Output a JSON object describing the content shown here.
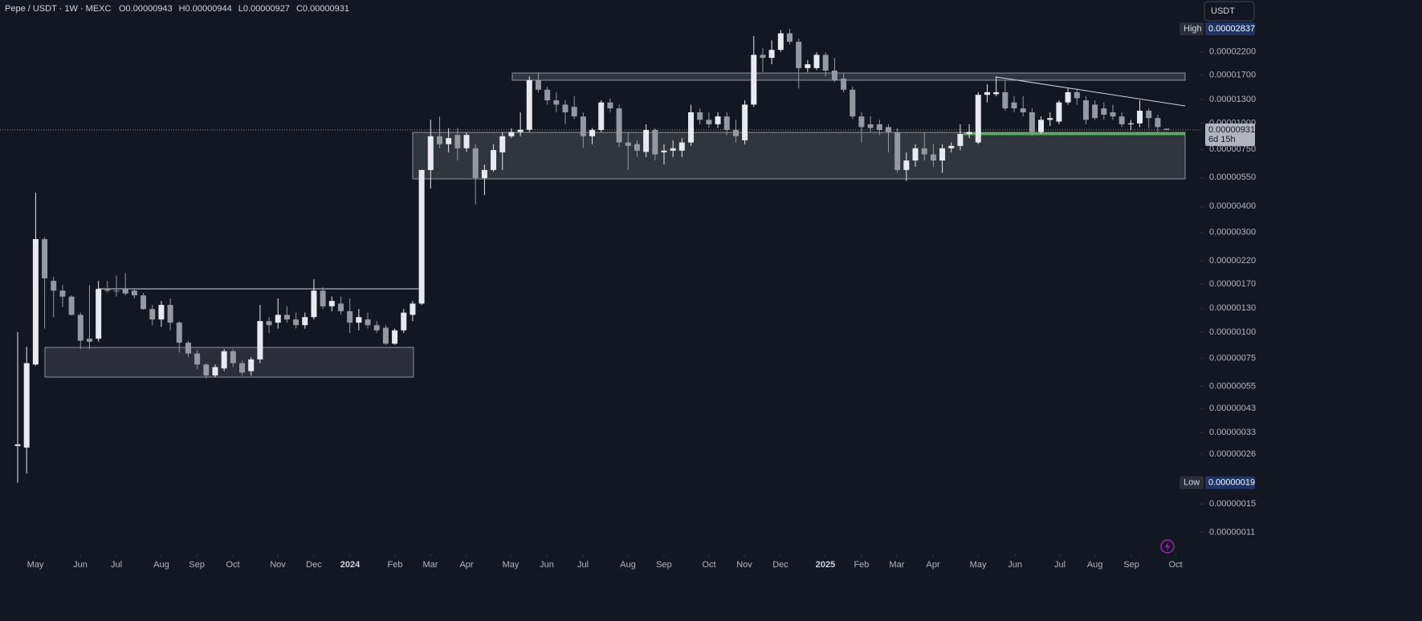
{
  "chart_data": {
    "type": "candlestick",
    "title": "Pepe / USDT · 1W · MEXC",
    "legend_values": [
      "O0.00000943",
      "H0.00000944",
      "L0.00000927",
      "C0.00000931"
    ],
    "currency": "USDT",
    "high_label": {
      "name": "High",
      "value_label": "0.00002837"
    },
    "low_label": {
      "name": "Low",
      "value_label": "0.00000019"
    },
    "last_label": {
      "value_label": "0.00000931",
      "countdown": "6d 15h"
    },
    "log_scale": true,
    "grid": false,
    "up_color": "#e8eaf0",
    "down_color": "#9598a1",
    "ylim": [
      8.69e-08,
      3.9e-05
    ],
    "yticks": [
      {
        "value": 2.2e-05,
        "label": "0.00002200"
      },
      {
        "value": 1.7e-05,
        "label": "0.00001700"
      },
      {
        "value": 1.3e-05,
        "label": "0.00001300"
      },
      {
        "value": 1e-05,
        "label": "0.00001000"
      },
      {
        "value": 7.5e-06,
        "label": "0.00000750"
      },
      {
        "value": 5.5e-06,
        "label": "0.00000550"
      },
      {
        "value": 4e-06,
        "label": "0.00000400"
      },
      {
        "value": 3e-06,
        "label": "0.00000300"
      },
      {
        "value": 2.2e-06,
        "label": "0.00000220"
      },
      {
        "value": 1.7e-06,
        "label": "0.00000170"
      },
      {
        "value": 1.3e-06,
        "label": "0.00000130"
      },
      {
        "value": 1e-06,
        "label": "0.00000100"
      },
      {
        "value": 7.5e-07,
        "label": "0.00000075"
      },
      {
        "value": 5.5e-07,
        "label": "0.00000055"
      },
      {
        "value": 4.3e-07,
        "label": "0.00000043"
      },
      {
        "value": 3.3e-07,
        "label": "0.00000033"
      },
      {
        "value": 2.6e-07,
        "label": "0.00000026"
      },
      {
        "value": 1.5e-07,
        "label": "0.00000015"
      },
      {
        "value": 1.1e-07,
        "label": "0.00000011"
      }
    ],
    "xlim": [
      -1.97,
      131.75
    ],
    "xticks": [
      {
        "value": 1.97,
        "label": "May"
      },
      {
        "value": 6.98,
        "label": "Jun"
      },
      {
        "value": 11.0,
        "label": "Jul"
      },
      {
        "value": 16.0,
        "label": "Aug"
      },
      {
        "value": 19.95,
        "label": "Sep"
      },
      {
        "value": 23.97,
        "label": "Oct"
      },
      {
        "value": 28.98,
        "label": "Nov"
      },
      {
        "value": 33.0,
        "label": "Dec"
      },
      {
        "value": 37.03,
        "label": "2024"
      },
      {
        "value": 42.04,
        "label": "Feb"
      },
      {
        "value": 45.97,
        "label": "Mar"
      },
      {
        "value": 50.0,
        "label": "Apr"
      },
      {
        "value": 54.92,
        "label": "May"
      },
      {
        "value": 58.94,
        "label": "Jun"
      },
      {
        "value": 62.97,
        "label": "Jul"
      },
      {
        "value": 67.98,
        "label": "Aug"
      },
      {
        "value": 72.0,
        "label": "Sep"
      },
      {
        "value": 77.01,
        "label": "Oct"
      },
      {
        "value": 80.95,
        "label": "Nov"
      },
      {
        "value": 84.97,
        "label": "Dec"
      },
      {
        "value": 89.98,
        "label": "2025"
      },
      {
        "value": 94.0,
        "label": "Feb"
      },
      {
        "value": 97.94,
        "label": "Mar"
      },
      {
        "value": 101.97,
        "label": "Apr"
      },
      {
        "value": 106.98,
        "label": "May"
      },
      {
        "value": 111.1,
        "label": "Jun"
      },
      {
        "value": 116.1,
        "label": "Jul"
      },
      {
        "value": 120.0,
        "label": "Aug"
      },
      {
        "value": 124.06,
        "label": "Sep"
      },
      {
        "value": 128.98,
        "label": "Oct"
      }
    ],
    "open": [
      2.85e-07,
      2.8e-07,
      7e-07,
      2.79e-06,
      1.76e-06,
      1.58e-06,
      1.48e-06,
      1.21e-06,
      9.3e-07,
      9.3e-07,
      1.6e-06,
      1.58e-06,
      1.61e-06,
      1.58e-06,
      1.5e-06,
      1.29e-06,
      1.15e-06,
      1.35e-06,
      1.11e-06,
      8.9e-07,
      7.9e-07,
      7e-07,
      6.2e-07,
      6.7e-07,
      8.1e-07,
      7.1e-07,
      6.5e-07,
      7.4e-07,
      1.13e-06,
      1.11e-06,
      1.21e-06,
      1.15e-06,
      1.08e-06,
      1.18e-06,
      1.58e-06,
      1.33e-06,
      1.37e-06,
      1.26e-06,
      1.11e-06,
      1.15e-06,
      1.08e-06,
      1.05e-06,
      8.8e-07,
      1.02e-06,
      1.21e-06,
      1.37e-06,
      5.98e-06,
      8.68e-06,
      7.95e-06,
      8.8e-06,
      7.6e-06,
      7.6e-06,
      5.47e-06,
      5.98e-06,
      7.27e-06,
      8.68e-06,
      9.1e-06,
      9.32e-06,
      1.61e-05,
      1.45e-05,
      1.29e-05,
      1.23e-05,
      1.2e-05,
      1.08e-05,
      8.68e-06,
      9.3e-06,
      1.26e-05,
      1.18e-05,
      8.1e-06,
      7.95e-06,
      7.3e-06,
      9.3e-06,
      7.27e-06,
      7.4e-06,
      7.4e-06,
      8.1e-06,
      1.13e-05,
      1.04e-05,
      9.9e-06,
      1.08e-05,
      9.3e-06,
      8.3e-06,
      1.23e-05,
      2.13e-05,
      2.06e-05,
      2.25e-05,
      2.7e-05,
      2.46e-05,
      1.84e-05,
      1.84e-05,
      2.13e-05,
      1.79e-05,
      1.64e-05,
      1.45e-05,
      1.08e-05,
      9.9e-06,
      9.9e-06,
      9.6e-06,
      9.1e-06,
      5.98e-06,
      6.64e-06,
      7.6e-06,
      7.1e-06,
      6.64e-06,
      7.6e-06,
      7.8e-06,
      8.9e-06,
      8.1e-06,
      1.37e-05,
      1.38e-05,
      1.41e-05,
      1.26e-05,
      1.18e-05,
      1.13e-05,
      9.1e-06,
      1.04e-05,
      1.02e-05,
      1.26e-05,
      1.41e-05,
      1.29e-05,
      1.23e-05,
      1.18e-05,
      1.13e-05,
      1.08e-05,
      9.9e-06,
      1e-05,
      1.15e-05,
      1.06e-05,
      9.43e-06
    ],
    "high": [
      1e-06,
      8.5e-07,
      4.66e-06,
      2.85e-06,
      1.84e-06,
      1.68e-06,
      1.5e-06,
      1.24e-06,
      1.68e-06,
      1.76e-06,
      1.76e-06,
      1.87e-06,
      1.92e-06,
      1.61e-06,
      1.54e-06,
      1.35e-06,
      1.41e-06,
      1.45e-06,
      1.13e-06,
      9.1e-07,
      8.2e-07,
      7.1e-07,
      7e-07,
      8.3e-07,
      8.3e-07,
      7.3e-07,
      7.6e-07,
      1.35e-06,
      1.18e-06,
      1.45e-06,
      1.33e-06,
      1.24e-06,
      1.24e-06,
      1.79e-06,
      1.64e-06,
      1.48e-06,
      1.48e-06,
      1.45e-06,
      1.29e-06,
      1.24e-06,
      1.13e-06,
      1.08e-06,
      1.04e-06,
      1.29e-06,
      1.41e-06,
      6e-06,
      1.04e-05,
      1.08e-05,
      9.49e-06,
      9.5e-06,
      9e-06,
      7.95e-06,
      6.35e-06,
      7.95e-06,
      9.1e-06,
      9.49e-06,
      1.13e-05,
      1.68e-05,
      1.76e-05,
      1.5e-05,
      1.41e-05,
      1.29e-05,
      1.35e-05,
      1.13e-05,
      9.5e-06,
      1.29e-05,
      1.32e-05,
      1.23e-05,
      9.1e-06,
      8.3e-06,
      9.9e-06,
      9.5e-06,
      7.95e-06,
      8.3e-06,
      8.5e-06,
      1.23e-05,
      1.18e-05,
      1.13e-05,
      1.13e-05,
      1.13e-05,
      1.04e-05,
      1.29e-05,
      2.62e-05,
      2.29e-05,
      2.5e-05,
      2.8e-05,
      2.837e-05,
      2.55e-05,
      2.01e-05,
      2.19e-05,
      2.19e-05,
      2.06e-05,
      1.73e-05,
      1.5e-05,
      1.13e-05,
      1.08e-05,
      1.04e-05,
      9.9e-06,
      9.49e-06,
      7.27e-06,
      7.95e-06,
      9.1e-06,
      7.95e-06,
      7.95e-06,
      8.1e-06,
      9.9e-06,
      9.9e-06,
      1.41e-05,
      1.54e-05,
      1.68e-05,
      1.61e-05,
      1.35e-05,
      1.35e-05,
      1.18e-05,
      1.08e-05,
      1.13e-05,
      1.29e-05,
      1.47e-05,
      1.47e-05,
      1.35e-05,
      1.29e-05,
      1.26e-05,
      1.23e-05,
      1.13e-05,
      1.04e-05,
      1.29e-05,
      1.18e-05,
      1.1e-05,
      9.44e-06
    ],
    "low": [
      1.9e-07,
      2.1e-07,
      6.9e-07,
      1.04e-06,
      1.18e-06,
      1.32e-06,
      1.2e-06,
      8.3e-07,
      8.3e-07,
      9e-07,
      1.55e-06,
      1.48e-06,
      1.5e-06,
      1.45e-06,
      1.28e-06,
      1.08e-06,
      1.06e-06,
      1.02e-06,
      8e-07,
      7.6e-07,
      6.65e-07,
      6e-07,
      6.1e-07,
      6.5e-07,
      6.8e-07,
      6.2e-07,
      6.2e-07,
      7.1e-07,
      9.9e-07,
      1.04e-06,
      1.11e-06,
      1.04e-06,
      1.04e-06,
      1.15e-06,
      1.29e-06,
      1.26e-06,
      1.21e-06,
      9.9e-07,
      1.02e-06,
      1.04e-06,
      9.9e-07,
      8.7e-07,
      8.7e-07,
      9.9e-07,
      1.13e-06,
      1.35e-06,
      4.88e-06,
      7.6e-06,
      7.27e-06,
      6.64e-06,
      7.3e-06,
      4.09e-06,
      4.53e-06,
      5.87e-06,
      5.98e-06,
      8.5e-06,
      8.68e-06,
      9.1e-06,
      1.41e-05,
      1.23e-05,
      1.13e-05,
      9.9e-06,
      1.05e-05,
      7.6e-06,
      7.95e-06,
      9.1e-06,
      1.13e-05,
      7.7e-06,
      5.98e-06,
      6.9e-06,
      6.9e-06,
      6.64e-06,
      6.35e-06,
      6.9e-06,
      6.9e-06,
      7.8e-06,
      9.9e-06,
      9.5e-06,
      9.5e-06,
      8.8e-06,
      8.1e-06,
      7.95e-06,
      1.2e-05,
      1.76e-05,
      1.92e-05,
      2.2e-05,
      2.39e-05,
      1.47e-05,
      1.76e-05,
      1.8e-05,
      1.68e-05,
      1.58e-05,
      1.41e-05,
      1.05e-05,
      8.1e-06,
      9.1e-06,
      8.8e-06,
      7.27e-06,
      5.8e-06,
      5.3e-06,
      6.2e-06,
      6.64e-06,
      6.2e-06,
      5.8e-06,
      7.27e-06,
      7.45e-06,
      8.5e-06,
      7.95e-06,
      1.26e-05,
      1.35e-05,
      1.15e-05,
      1.13e-05,
      1.08e-05,
      8.68e-06,
      8.9e-06,
      9.7e-06,
      9.9e-06,
      1.23e-05,
      1.23e-05,
      9.9e-06,
      1.04e-05,
      1.04e-05,
      1.04e-05,
      9.6e-06,
      9.3e-06,
      9.6e-06,
      9.49e-06,
      9.1e-06,
      9.27e-06
    ],
    "close": [
      2.9e-07,
      7.1e-07,
      2.79e-06,
      1.81e-06,
      1.58e-06,
      1.48e-06,
      1.21e-06,
      9.1e-07,
      9e-07,
      1.61e-06,
      1.58e-06,
      1.57e-06,
      1.53e-06,
      1.5e-06,
      1.29e-06,
      1.15e-06,
      1.35e-06,
      1.11e-06,
      8.9e-07,
      7.9e-07,
      7e-07,
      6.2e-07,
      6.8e-07,
      8.1e-07,
      7.1e-07,
      6.4e-07,
      7.4e-07,
      1.13e-06,
      1.08e-06,
      1.21e-06,
      1.15e-06,
      1.08e-06,
      1.18e-06,
      1.58e-06,
      1.33e-06,
      1.41e-06,
      1.26e-06,
      1.11e-06,
      1.18e-06,
      1.08e-06,
      1.02e-06,
      8.8e-07,
      1.02e-06,
      1.24e-06,
      1.37e-06,
      5.98e-06,
      8.68e-06,
      7.95e-06,
      8.5e-06,
      7.6e-06,
      8.8e-06,
      5.47e-06,
      5.98e-06,
      7.45e-06,
      8.68e-06,
      9.1e-06,
      9.32e-06,
      1.61e-05,
      1.45e-05,
      1.29e-05,
      1.23e-05,
      1.13e-05,
      1.08e-05,
      8.68e-06,
      9.3e-06,
      1.26e-05,
      1.18e-05,
      8.1e-06,
      7.8e-06,
      7.4e-06,
      9.3e-06,
      7.1e-06,
      7.4e-06,
      7.6e-06,
      8.1e-06,
      1.13e-05,
      1.04e-05,
      9.9e-06,
      1.08e-05,
      9.3e-06,
      8.68e-06,
      1.23e-05,
      2.13e-05,
      2.06e-05,
      2.25e-05,
      2.7e-05,
      2.46e-05,
      1.84e-05,
      1.92e-05,
      2.13e-05,
      1.79e-05,
      1.61e-05,
      1.45e-05,
      1.08e-05,
      9.6e-06,
      9.5e-06,
      9.3e-06,
      9.1e-06,
      5.98e-06,
      6.64e-06,
      7.6e-06,
      7.1e-06,
      6.64e-06,
      7.6e-06,
      7.8e-06,
      8.9e-06,
      9.1e-06,
      1.37e-05,
      1.41e-05,
      1.41e-05,
      1.18e-05,
      1.18e-05,
      1.13e-05,
      9.1e-06,
      1.04e-05,
      1.06e-05,
      1.26e-05,
      1.41e-05,
      1.32e-05,
      1.04e-05,
      1.06e-05,
      1.1e-05,
      1.08e-05,
      9.9e-06,
      1e-05,
      1.15e-05,
      1.06e-05,
      9.6e-06,
      9.31e-06
    ]
  }
}
